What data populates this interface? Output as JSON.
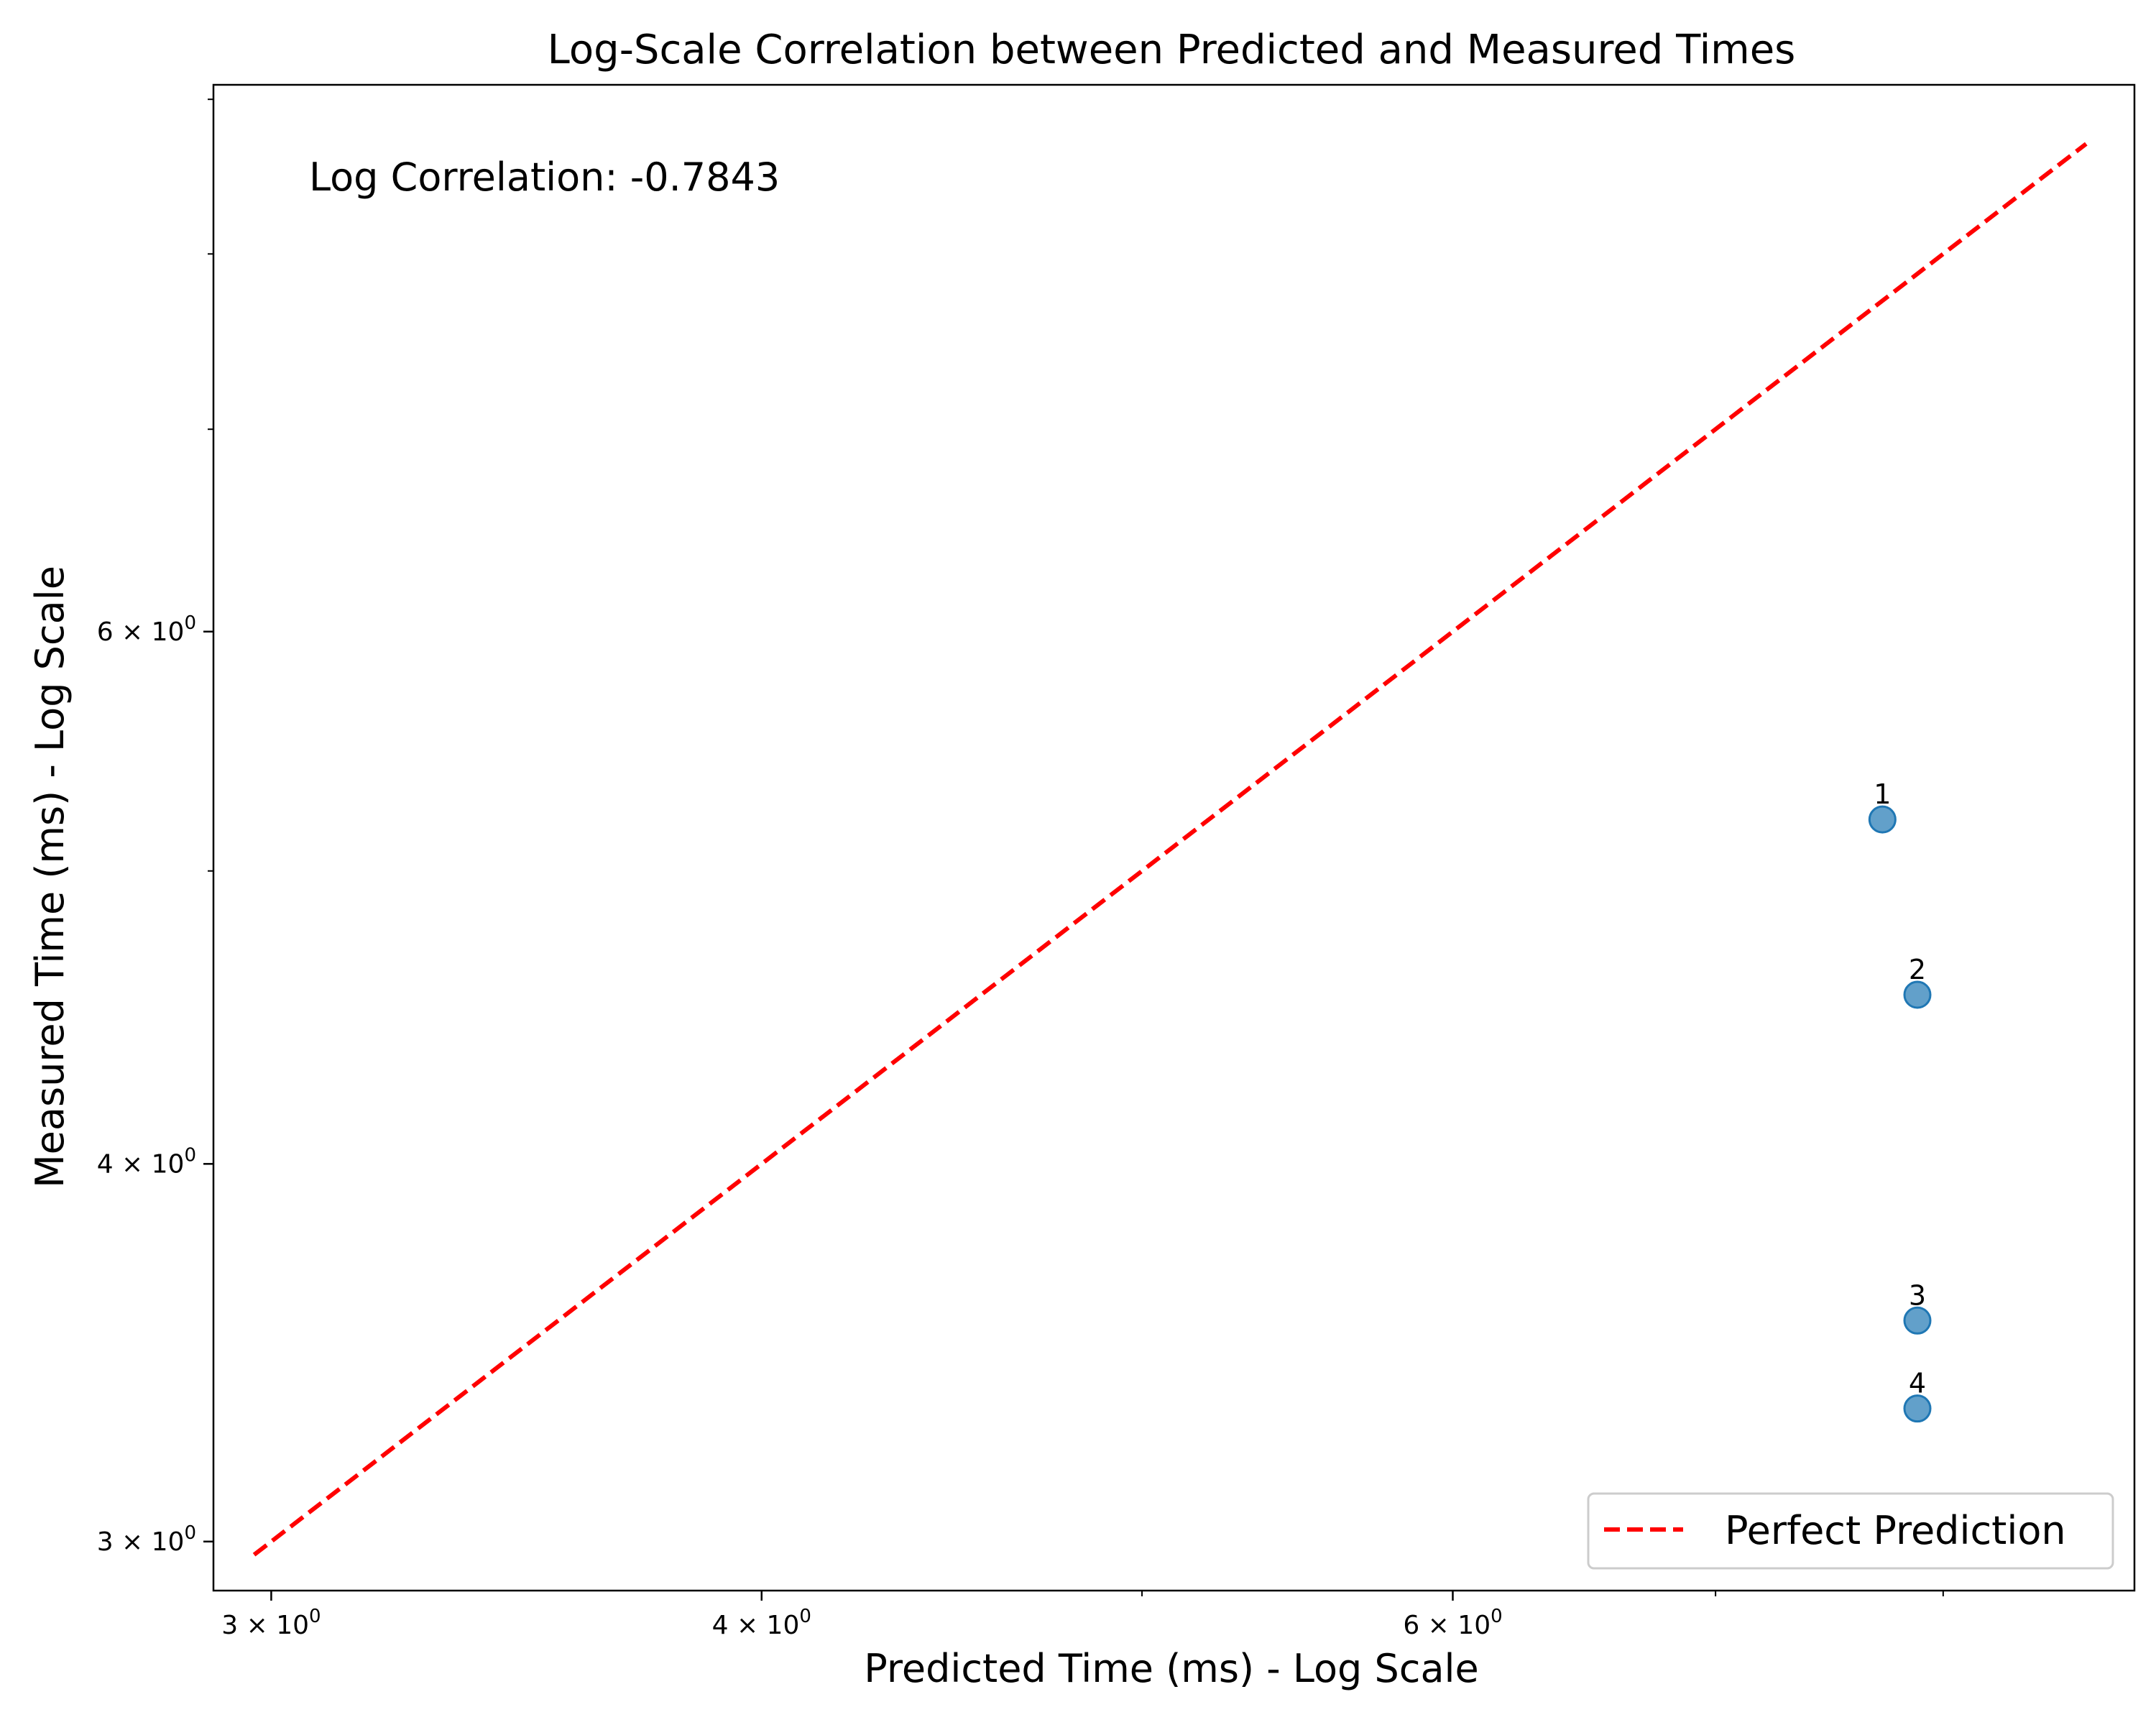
{
  "chart_data": {
    "type": "scatter",
    "title": "Log-Scale Correlation between Predicted and Measured Times",
    "xlabel": "Predicted Time (ms) - Log Scale",
    "ylabel": "Measured Time (ms) - Log Scale",
    "x_scale": "log",
    "y_scale": "log",
    "xlim": [
      2.9,
      8.95
    ],
    "ylim": [
      2.89,
      9.1
    ],
    "x_major_ticks": [
      {
        "value": 3,
        "label_base": "3 × 10",
        "label_exp": "0"
      },
      {
        "value": 4,
        "label_base": "4 × 10",
        "label_exp": "0"
      },
      {
        "value": 6,
        "label_base": "6 × 10",
        "label_exp": "0"
      }
    ],
    "x_minor_ticks": [
      5,
      7,
      8
    ],
    "y_major_ticks": [
      {
        "value": 3,
        "label_base": "3 × 10",
        "label_exp": "0"
      },
      {
        "value": 4,
        "label_base": "4 × 10",
        "label_exp": "0"
      },
      {
        "value": 6,
        "label_base": "6 × 10",
        "label_exp": "0"
      }
    ],
    "y_minor_ticks": [
      5,
      7,
      8,
      9
    ],
    "annotation": "Log Correlation: -0.7843",
    "points": [
      {
        "label": "1",
        "x": 7.72,
        "y": 5.2
      },
      {
        "label": "2",
        "x": 7.88,
        "y": 4.55
      },
      {
        "label": "3",
        "x": 7.88,
        "y": 3.55
      },
      {
        "label": "4",
        "x": 7.88,
        "y": 3.32
      }
    ],
    "reference_line": {
      "name": "Perfect Prediction",
      "x": [
        2.97,
        8.7
      ],
      "y": [
        2.97,
        8.7
      ],
      "style": "dashed",
      "color": "#ff0000"
    },
    "point_color": "#1f77b4",
    "legend": {
      "placement": "lower-right",
      "entries": [
        "Perfect Prediction"
      ]
    },
    "grid": false
  }
}
